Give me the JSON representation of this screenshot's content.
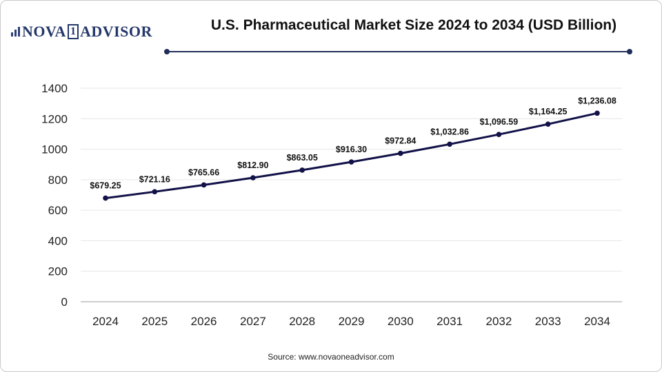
{
  "brand": {
    "name_left": "NOVA",
    "name_num": "1",
    "name_right": "ADVISOR"
  },
  "colors": {
    "line": "#121148",
    "brand": "#24376b",
    "grid": "#e6e6e6"
  },
  "source_text": "Source: www.novaoneadvisor.com",
  "chart_data": {
    "type": "line",
    "title": "U.S. Pharmaceutical Market Size 2024 to 2034 (USD Billion)",
    "xlabel": "",
    "ylabel": "",
    "categories": [
      "2024",
      "2025",
      "2026",
      "2027",
      "2028",
      "2029",
      "2030",
      "2031",
      "2032",
      "2033",
      "2034"
    ],
    "series": [
      {
        "values": [
          679.25,
          721.16,
          765.66,
          812.9,
          863.05,
          916.3,
          972.84,
          1032.86,
          1096.59,
          1164.25,
          1236.08
        ],
        "labels": [
          "$679.25",
          "$721.16",
          "$765.66",
          "$812.90",
          "$863.05",
          "$916.30",
          "$972.84",
          "$1,032.86",
          "$1,096.59",
          "$1,164.25",
          "$1,236.08"
        ]
      }
    ],
    "ylim": [
      0,
      1400
    ],
    "yticks": [
      0,
      200,
      400,
      600,
      800,
      1000,
      1200,
      1400
    ],
    "grid": true,
    "legend": "none"
  }
}
